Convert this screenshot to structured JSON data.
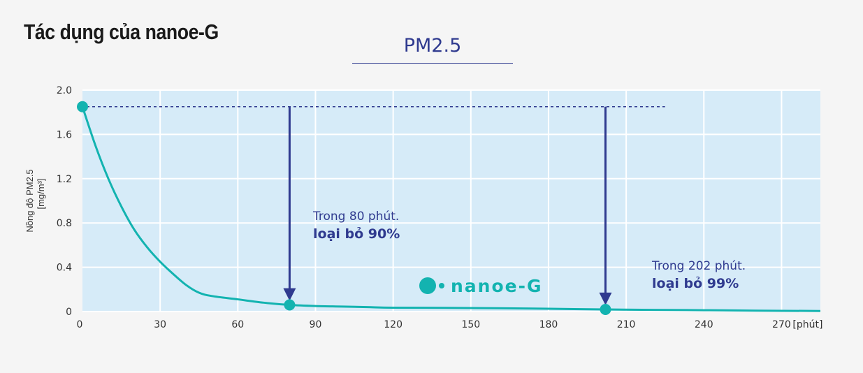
{
  "page_title": "Tác dụng của nanoe-G",
  "chart_data": {
    "type": "line",
    "title": "PM2.5",
    "xlabel": "",
    "xunit": "[phút]",
    "ylabel": "Nồng độ PM2.5",
    "yunit": "[mg/m³]",
    "xlim": [
      0,
      285
    ],
    "ylim": [
      0,
      2.0
    ],
    "x_ticks": [
      0,
      30,
      60,
      90,
      120,
      150,
      180,
      210,
      240,
      270
    ],
    "y_ticks": [
      0,
      0.4,
      0.8,
      1.2,
      1.6,
      2.0
    ],
    "y_tick_labels": [
      "0",
      "0.4",
      "0.8",
      "1.2",
      "1.6",
      "2.0"
    ],
    "grid": true,
    "series": [
      {
        "x": [
          0,
          5,
          10,
          15,
          20,
          25,
          30,
          35,
          40,
          45,
          50,
          60,
          70,
          80,
          90,
          100,
          110,
          120,
          140,
          160,
          180,
          202,
          220,
          240,
          260,
          285
        ],
        "values": [
          1.85,
          1.5,
          1.2,
          0.95,
          0.74,
          0.58,
          0.45,
          0.34,
          0.24,
          0.17,
          0.14,
          0.11,
          0.08,
          0.06,
          0.05,
          0.045,
          0.04,
          0.035,
          0.033,
          0.03,
          0.025,
          0.019,
          0.015,
          0.012,
          0.008,
          0.005
        ]
      }
    ],
    "markers": [
      {
        "x": 0,
        "y": 1.85
      },
      {
        "x": 80,
        "y": 0.06
      },
      {
        "x": 202,
        "y": 0.019
      }
    ],
    "reference_line": {
      "y": 1.85,
      "x_end": 225
    },
    "arrows": [
      {
        "x": 80,
        "from": 1.85,
        "to": 0.11
      },
      {
        "x": 202,
        "from": 1.85,
        "to": 0.07
      }
    ],
    "annotations": [
      {
        "line1": "Trong 80 phút.",
        "line2": "loại bỏ 90%"
      },
      {
        "line1": "Trong 202 phút.",
        "line2": "loại bỏ 99%"
      }
    ],
    "brand_label": "nanoe-G"
  },
  "colors": {
    "plot_bg": "#d6ebf8",
    "grid": "#ffffff",
    "curve": "#13b3b0",
    "arrow": "#2f3a8f",
    "text": "#333333"
  }
}
